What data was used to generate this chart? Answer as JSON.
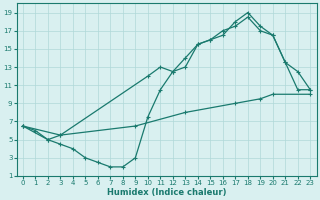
{
  "xlabel": "Humidex (Indice chaleur)",
  "bg_color": "#d9f0f0",
  "line_color": "#1a7a6e",
  "grid_color": "#b0d8d8",
  "xlim": [
    -0.5,
    23.5
  ],
  "ylim": [
    1,
    20
  ],
  "xticks": [
    0,
    1,
    2,
    3,
    4,
    5,
    6,
    7,
    8,
    9,
    10,
    11,
    12,
    13,
    14,
    15,
    16,
    17,
    18,
    19,
    20,
    21,
    22,
    23
  ],
  "yticks": [
    1,
    3,
    5,
    7,
    9,
    11,
    13,
    15,
    17,
    19
  ],
  "line1_x": [
    0,
    1,
    2,
    3,
    10,
    11,
    12,
    13,
    14,
    15,
    16,
    17,
    18,
    19,
    20,
    21,
    22,
    23
  ],
  "line1_y": [
    6.5,
    6.0,
    5.0,
    5.5,
    12.0,
    13.0,
    12.5,
    14.0,
    15.5,
    16.0,
    16.5,
    18.0,
    19.0,
    17.5,
    16.5,
    13.5,
    12.5,
    10.5
  ],
  "line2_x": [
    0,
    2,
    3,
    4,
    5,
    6,
    7,
    8,
    9,
    10,
    11,
    12,
    13,
    14,
    15,
    16,
    17,
    18,
    19,
    20,
    21,
    22,
    23
  ],
  "line2_y": [
    6.5,
    5.0,
    4.5,
    4.0,
    3.0,
    2.5,
    2.0,
    2.0,
    3.0,
    7.5,
    10.5,
    12.5,
    13.0,
    15.5,
    16.0,
    17.0,
    17.5,
    18.5,
    17.0,
    16.5,
    13.5,
    10.5,
    10.5
  ],
  "line3_x": [
    0,
    3,
    9,
    13,
    17,
    19,
    20,
    23
  ],
  "line3_y": [
    6.5,
    5.5,
    6.5,
    8.0,
    9.0,
    9.5,
    10.0,
    10.0
  ],
  "marker": "+",
  "markersize": 3,
  "linewidth": 0.9
}
